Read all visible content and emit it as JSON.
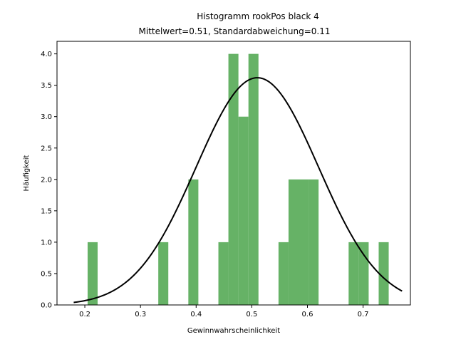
{
  "chart_data": {
    "type": "bar",
    "title": "Histogramm rookPos black 4",
    "subtitle": "Mittelwert=0.51, Standardabweichung=0.11",
    "xlabel": "Gewinnwahrscheinlichkeit",
    "ylabel": "Häufigkeit",
    "xlim": [
      0.15,
      0.785
    ],
    "ylim": [
      0,
      4.2
    ],
    "xticks": [
      "0.2",
      "0.3",
      "0.4",
      "0.5",
      "0.6",
      "0.7"
    ],
    "yticks": [
      "0.0",
      "0.5",
      "1.0",
      "1.5",
      "2.0",
      "2.5",
      "3.0",
      "3.5",
      "4.0"
    ],
    "grid": false,
    "bar_color": "#66b266",
    "curve_color": "#000000",
    "bins": [
      {
        "x0": 0.205,
        "x1": 0.223,
        "count": 1
      },
      {
        "x0": 0.332,
        "x1": 0.35,
        "count": 1
      },
      {
        "x0": 0.386,
        "x1": 0.404,
        "count": 2
      },
      {
        "x0": 0.44,
        "x1": 0.458,
        "count": 1
      },
      {
        "x0": 0.458,
        "x1": 0.476,
        "count": 4
      },
      {
        "x0": 0.476,
        "x1": 0.494,
        "count": 3
      },
      {
        "x0": 0.494,
        "x1": 0.512,
        "count": 4
      },
      {
        "x0": 0.548,
        "x1": 0.566,
        "count": 1
      },
      {
        "x0": 0.566,
        "x1": 0.584,
        "count": 2
      },
      {
        "x0": 0.584,
        "x1": 0.602,
        "count": 2
      },
      {
        "x0": 0.602,
        "x1": 0.62,
        "count": 2
      },
      {
        "x0": 0.674,
        "x1": 0.692,
        "count": 1
      },
      {
        "x0": 0.692,
        "x1": 0.71,
        "count": 1
      },
      {
        "x0": 0.728,
        "x1": 0.746,
        "count": 1
      }
    ],
    "normal_curve": {
      "mean": 0.51,
      "std": 0.11,
      "peak": 3.62,
      "x_start": 0.18,
      "x_end": 0.77
    }
  }
}
